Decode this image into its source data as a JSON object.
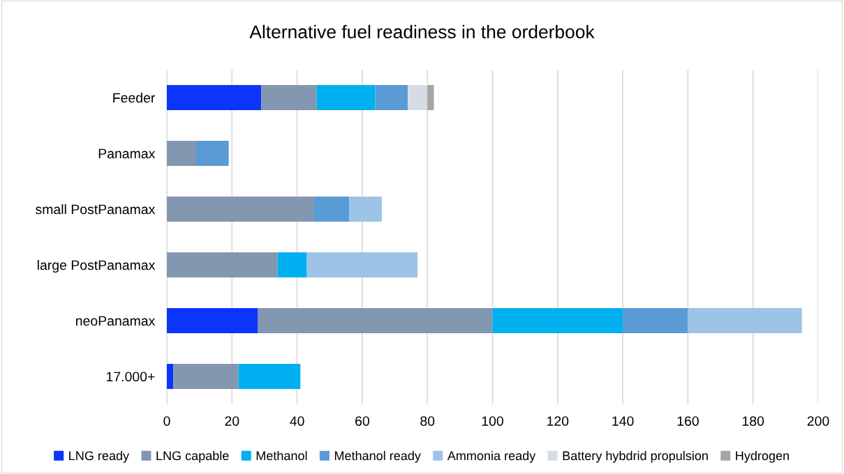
{
  "chart_data": {
    "type": "bar",
    "orientation": "horizontal",
    "stacked": true,
    "title": "Alternative fuel readiness in the orderbook",
    "categories": [
      "Feeder",
      "Panamax",
      "small PostPanamax",
      "large PostPanamax",
      "neoPanamax",
      "17.000+"
    ],
    "series": [
      {
        "name": "LNG ready",
        "color": "#0c35fb",
        "values": [
          29,
          0,
          0,
          0,
          28,
          2
        ]
      },
      {
        "name": "LNG capable",
        "color": "#8497b0",
        "values": [
          17,
          9,
          45,
          34,
          72,
          20
        ]
      },
      {
        "name": "Methanol",
        "color": "#00b0f0",
        "values": [
          18,
          0,
          0,
          9,
          40,
          19
        ]
      },
      {
        "name": "Methanol ready",
        "color": "#5b9bd5",
        "values": [
          10,
          10,
          11,
          0,
          20,
          0
        ]
      },
      {
        "name": "Ammonia ready",
        "color": "#9dc3e6",
        "values": [
          0,
          0,
          10,
          34,
          35,
          0
        ]
      },
      {
        "name": "Battery hybdrid propulsion",
        "color": "#d6dce5",
        "values": [
          6,
          0,
          0,
          0,
          0,
          0
        ]
      },
      {
        "name": "Hydrogen",
        "color": "#a5a5a5",
        "values": [
          2,
          0,
          0,
          0,
          0,
          0
        ]
      }
    ],
    "xlim": [
      0,
      200
    ],
    "xticks": [
      0,
      20,
      40,
      60,
      80,
      100,
      120,
      140,
      160,
      180,
      200
    ],
    "grid": "x",
    "legend": "bottom"
  }
}
